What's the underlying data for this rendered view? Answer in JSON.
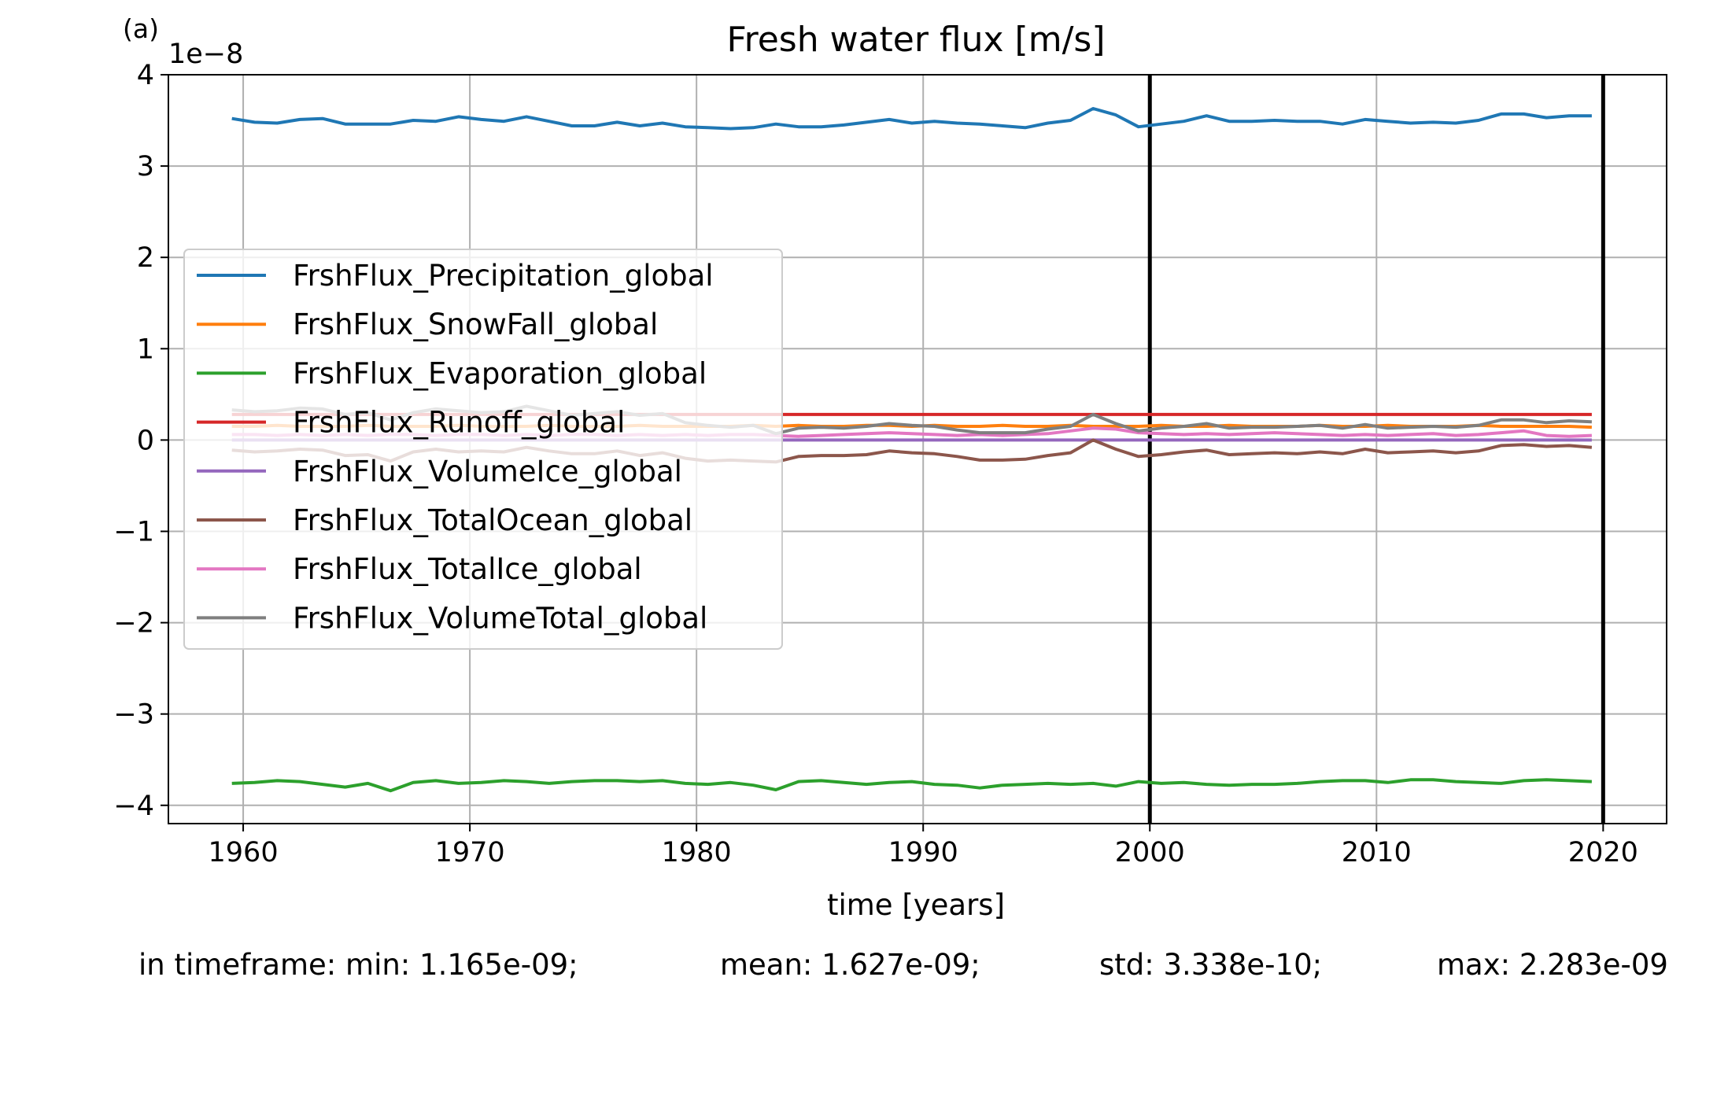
{
  "panel_label": "(a)",
  "stats": {
    "min": "in timeframe: min: 1.165e-09;",
    "mean": "mean: 1.627e-09;",
    "std": "std: 3.338e-10;",
    "max": "max: 2.283e-09"
  },
  "chart_data": {
    "type": "line",
    "title": "Fresh water flux [m/s]",
    "xlabel": "time [years]",
    "ylabel": "",
    "y_offset_label": "1e−8",
    "xlim": [
      1956.7,
      2022.8
    ],
    "ylim": [
      -4.2,
      4.0
    ],
    "xticks": [
      1960,
      1970,
      1980,
      1990,
      2000,
      2010,
      2020
    ],
    "yticks": [
      -4,
      -3,
      -2,
      -1,
      0,
      1,
      2,
      3,
      4
    ],
    "ytick_labels": [
      "−4",
      "−3",
      "−2",
      "−1",
      "0",
      "1",
      "2",
      "3",
      "4"
    ],
    "grid": true,
    "legend_position": "center-left",
    "vertical_markers": [
      2000,
      2020
    ],
    "x": [
      1959.5,
      1960.5,
      1961.5,
      1962.5,
      1963.5,
      1964.5,
      1965.5,
      1966.5,
      1967.5,
      1968.5,
      1969.5,
      1970.5,
      1971.5,
      1972.5,
      1973.5,
      1974.5,
      1975.5,
      1976.5,
      1977.5,
      1978.5,
      1979.5,
      1980.5,
      1981.5,
      1982.5,
      1983.5,
      1984.5,
      1985.5,
      1986.5,
      1987.5,
      1988.5,
      1989.5,
      1990.5,
      1991.5,
      1992.5,
      1993.5,
      1994.5,
      1995.5,
      1996.5,
      1997.5,
      1998.5,
      1999.5,
      2000.5,
      2001.5,
      2002.5,
      2003.5,
      2004.5,
      2005.5,
      2006.5,
      2007.5,
      2008.5,
      2009.5,
      2010.5,
      2011.5,
      2012.5,
      2013.5,
      2014.5,
      2015.5,
      2016.5,
      2017.5,
      2018.5,
      2019.5
    ],
    "series": [
      {
        "name": "FrshFlux_Precipitation_global",
        "color": "#1f77b4",
        "values": [
          3.52,
          3.48,
          3.47,
          3.51,
          3.52,
          3.46,
          3.46,
          3.46,
          3.5,
          3.49,
          3.54,
          3.51,
          3.49,
          3.54,
          3.49,
          3.44,
          3.44,
          3.48,
          3.44,
          3.47,
          3.43,
          3.42,
          3.41,
          3.42,
          3.46,
          3.43,
          3.43,
          3.45,
          3.48,
          3.51,
          3.47,
          3.49,
          3.47,
          3.46,
          3.44,
          3.42,
          3.47,
          3.5,
          3.63,
          3.56,
          3.43,
          3.46,
          3.49,
          3.55,
          3.49,
          3.49,
          3.5,
          3.49,
          3.49,
          3.46,
          3.51,
          3.49,
          3.47,
          3.48,
          3.47,
          3.5,
          3.57,
          3.57,
          3.53,
          3.55,
          3.55
        ]
      },
      {
        "name": "FrshFlux_SnowFall_global",
        "color": "#ff7f0e",
        "values": [
          0.15,
          0.15,
          0.16,
          0.15,
          0.15,
          0.15,
          0.16,
          0.15,
          0.15,
          0.15,
          0.16,
          0.15,
          0.15,
          0.15,
          0.16,
          0.15,
          0.15,
          0.15,
          0.16,
          0.15,
          0.15,
          0.15,
          0.15,
          0.16,
          0.15,
          0.16,
          0.15,
          0.15,
          0.16,
          0.16,
          0.15,
          0.16,
          0.15,
          0.15,
          0.16,
          0.15,
          0.15,
          0.16,
          0.15,
          0.15,
          0.15,
          0.16,
          0.15,
          0.15,
          0.16,
          0.15,
          0.15,
          0.15,
          0.16,
          0.15,
          0.15,
          0.16,
          0.15,
          0.15,
          0.15,
          0.16,
          0.15,
          0.15,
          0.15,
          0.15,
          0.14
        ]
      },
      {
        "name": "FrshFlux_Evaporation_global",
        "color": "#2ca02c",
        "values": [
          -3.76,
          -3.75,
          -3.73,
          -3.74,
          -3.77,
          -3.8,
          -3.76,
          -3.84,
          -3.75,
          -3.73,
          -3.76,
          -3.75,
          -3.73,
          -3.74,
          -3.76,
          -3.74,
          -3.73,
          -3.73,
          -3.74,
          -3.73,
          -3.76,
          -3.77,
          -3.75,
          -3.78,
          -3.83,
          -3.74,
          -3.73,
          -3.75,
          -3.77,
          -3.75,
          -3.74,
          -3.77,
          -3.78,
          -3.81,
          -3.78,
          -3.77,
          -3.76,
          -3.77,
          -3.76,
          -3.79,
          -3.74,
          -3.76,
          -3.75,
          -3.77,
          -3.78,
          -3.77,
          -3.77,
          -3.76,
          -3.74,
          -3.73,
          -3.73,
          -3.75,
          -3.72,
          -3.72,
          -3.74,
          -3.75,
          -3.76,
          -3.73,
          -3.72,
          -3.73,
          -3.74
        ]
      },
      {
        "name": "FrshFlux_Runoff_global",
        "color": "#d62728",
        "values": [
          0.28,
          0.28,
          0.28,
          0.28,
          0.28,
          0.28,
          0.28,
          0.28,
          0.28,
          0.28,
          0.28,
          0.28,
          0.28,
          0.28,
          0.28,
          0.28,
          0.28,
          0.28,
          0.28,
          0.28,
          0.28,
          0.28,
          0.28,
          0.28,
          0.28,
          0.28,
          0.28,
          0.28,
          0.28,
          0.28,
          0.28,
          0.28,
          0.28,
          0.28,
          0.28,
          0.28,
          0.28,
          0.28,
          0.28,
          0.28,
          0.28,
          0.28,
          0.28,
          0.28,
          0.28,
          0.28,
          0.28,
          0.28,
          0.28,
          0.28,
          0.28,
          0.28,
          0.28,
          0.28,
          0.28,
          0.28,
          0.28,
          0.28,
          0.28,
          0.28,
          0.28
        ]
      },
      {
        "name": "FrshFlux_VolumeIce_global",
        "color": "#9467bd",
        "values": [
          0.0,
          0.0,
          0.0,
          0.0,
          0.0,
          0.0,
          0.0,
          0.0,
          0.0,
          0.0,
          0.0,
          0.0,
          0.0,
          0.0,
          0.0,
          0.0,
          0.0,
          0.0,
          0.0,
          0.0,
          0.0,
          0.0,
          0.0,
          0.0,
          0.0,
          0.0,
          0.0,
          0.0,
          0.0,
          0.0,
          0.0,
          0.0,
          0.0,
          0.0,
          0.0,
          0.0,
          0.0,
          0.0,
          0.0,
          0.0,
          0.0,
          0.0,
          0.0,
          0.0,
          0.0,
          0.0,
          0.0,
          0.0,
          0.0,
          0.0,
          0.0,
          0.0,
          0.0,
          0.0,
          0.0,
          0.0,
          0.0,
          0.0,
          0.0,
          0.0,
          0.0
        ]
      },
      {
        "name": "FrshFlux_TotalOcean_global",
        "color": "#8c564b",
        "values": [
          -0.11,
          -0.13,
          -0.12,
          -0.1,
          -0.11,
          -0.17,
          -0.16,
          -0.23,
          -0.13,
          -0.1,
          -0.13,
          -0.12,
          -0.13,
          -0.08,
          -0.12,
          -0.15,
          -0.15,
          -0.12,
          -0.17,
          -0.14,
          -0.2,
          -0.23,
          -0.22,
          -0.23,
          -0.24,
          -0.18,
          -0.17,
          -0.17,
          -0.16,
          -0.12,
          -0.14,
          -0.15,
          -0.18,
          -0.22,
          -0.22,
          -0.21,
          -0.17,
          -0.14,
          0.0,
          -0.1,
          -0.18,
          -0.16,
          -0.13,
          -0.11,
          -0.16,
          -0.15,
          -0.14,
          -0.15,
          -0.13,
          -0.15,
          -0.1,
          -0.14,
          -0.13,
          -0.12,
          -0.14,
          -0.12,
          -0.06,
          -0.05,
          -0.07,
          -0.06,
          -0.08
        ]
      },
      {
        "name": "FrshFlux_TotalIce_global",
        "color": "#e377c2",
        "values": [
          0.06,
          0.06,
          0.05,
          0.06,
          0.05,
          0.06,
          0.05,
          0.06,
          0.06,
          0.05,
          0.06,
          0.06,
          0.05,
          0.06,
          0.05,
          0.06,
          0.06,
          0.05,
          0.06,
          0.05,
          0.06,
          0.05,
          0.06,
          0.06,
          0.05,
          0.04,
          0.05,
          0.06,
          0.07,
          0.08,
          0.07,
          0.06,
          0.05,
          0.06,
          0.05,
          0.06,
          0.07,
          0.1,
          0.13,
          0.12,
          0.08,
          0.07,
          0.06,
          0.07,
          0.06,
          0.07,
          0.08,
          0.07,
          0.06,
          0.05,
          0.06,
          0.05,
          0.06,
          0.07,
          0.05,
          0.06,
          0.08,
          0.1,
          0.05,
          0.04,
          0.05
        ]
      },
      {
        "name": "FrshFlux_VolumeTotal_global",
        "color": "#7f7f7f",
        "values": [
          0.33,
          0.31,
          0.32,
          0.35,
          0.34,
          0.28,
          0.3,
          0.22,
          0.3,
          0.34,
          0.32,
          0.3,
          0.31,
          0.37,
          0.32,
          0.27,
          0.29,
          0.31,
          0.27,
          0.29,
          0.19,
          0.16,
          0.14,
          0.16,
          0.07,
          0.13,
          0.14,
          0.13,
          0.15,
          0.18,
          0.16,
          0.15,
          0.11,
          0.08,
          0.08,
          0.08,
          0.12,
          0.15,
          0.28,
          0.18,
          0.1,
          0.13,
          0.15,
          0.18,
          0.13,
          0.14,
          0.14,
          0.15,
          0.16,
          0.13,
          0.17,
          0.13,
          0.14,
          0.15,
          0.14,
          0.16,
          0.22,
          0.22,
          0.19,
          0.21,
          0.2
        ]
      }
    ]
  }
}
